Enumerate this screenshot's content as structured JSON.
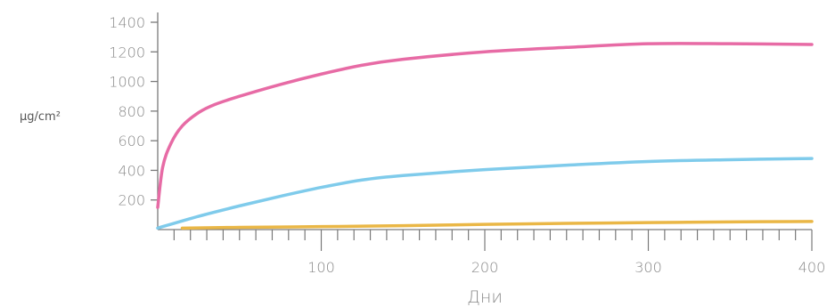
{
  "chart_data": {
    "type": "line",
    "xlabel": "Дни",
    "ylabel": "µg/cm²",
    "xlim": [
      0,
      400
    ],
    "ylim": [
      0,
      1400
    ],
    "x_ticks": [
      100,
      200,
      300,
      400
    ],
    "y_ticks": [
      200,
      400,
      600,
      800,
      1000,
      1200,
      1400
    ],
    "grid": false,
    "series": [
      {
        "color": "#e76ba5",
        "x": [
          0,
          3,
          8,
          15,
          25,
          35,
          50,
          75,
          100,
          125,
          150,
          200,
          250,
          300,
          350,
          400
        ],
        "values": [
          150,
          420,
          580,
          700,
          790,
          845,
          900,
          980,
          1050,
          1110,
          1150,
          1200,
          1230,
          1255,
          1255,
          1250
        ]
      },
      {
        "color": "#7fcbeb",
        "x": [
          0,
          25,
          50,
          75,
          100,
          125,
          150,
          200,
          250,
          300,
          350,
          400
        ],
        "values": [
          10,
          90,
          160,
          225,
          285,
          335,
          365,
          405,
          435,
          460,
          472,
          480
        ]
      },
      {
        "color": "#eab746",
        "x": [
          15,
          50,
          100,
          150,
          200,
          250,
          300,
          350,
          400
        ],
        "values": [
          10,
          15,
          20,
          26,
          35,
          42,
          47,
          52,
          55
        ]
      }
    ]
  }
}
